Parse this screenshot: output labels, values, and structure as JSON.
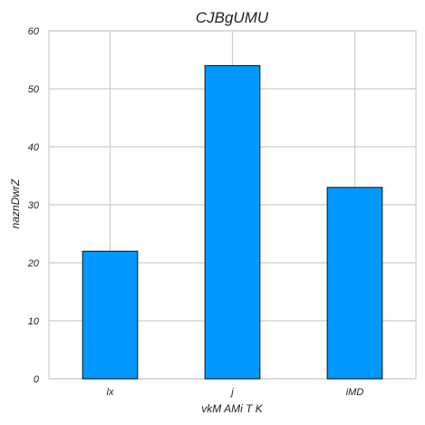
{
  "chart_data": {
    "type": "bar",
    "title": "CJBgUMU",
    "xlabel": "vkM AMi T K",
    "ylabel": "naznDwrZ",
    "categories": [
      "lx",
      "j",
      "iMD"
    ],
    "values": [
      22,
      54,
      33
    ],
    "ylim": [
      0,
      60
    ],
    "yticks": [
      0,
      10,
      20,
      30,
      40,
      50,
      60
    ],
    "grid": true,
    "bar_color": "#0099ff",
    "edge_color": "#000000"
  }
}
